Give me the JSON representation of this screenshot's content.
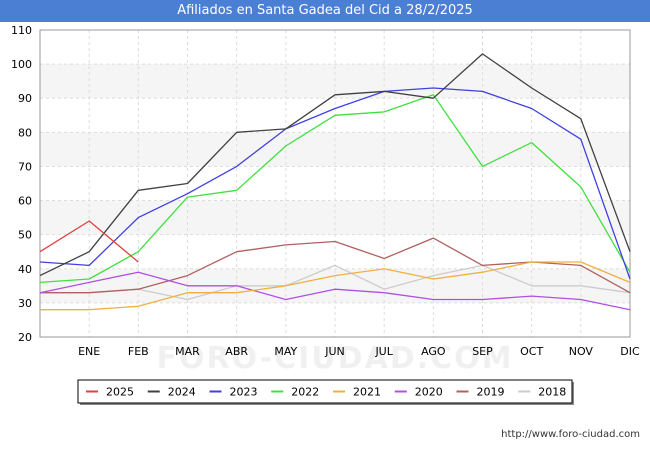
{
  "header": {
    "title": "Afiliados en Santa Gadea del Cid a 28/2/2025"
  },
  "footer": {
    "url": "http://www.foro-ciudad.com"
  },
  "watermark": "FORO-CIUDAD.COM",
  "chart_data": {
    "type": "line",
    "title": "Afiliados en Santa Gadea del Cid a 28/2/2025",
    "xlabel": "",
    "ylabel": "",
    "x": [
      "",
      "ENE",
      "FEB",
      "MAR",
      "ABR",
      "MAY",
      "JUN",
      "JUL",
      "AGO",
      "SEP",
      "OCT",
      "NOV",
      "DIC"
    ],
    "ylim": [
      20,
      110
    ],
    "yticks": [
      20,
      30,
      40,
      50,
      60,
      70,
      80,
      90,
      100,
      110
    ],
    "grid": true,
    "legend_position": "bottom",
    "series": [
      {
        "name": "2025",
        "color": "#e04040",
        "values": [
          45,
          54,
          42,
          null,
          null,
          null,
          null,
          null,
          null,
          null,
          null,
          null,
          null
        ]
      },
      {
        "name": "2024",
        "color": "#404040",
        "values": [
          38,
          45,
          63,
          65,
          80,
          81,
          91,
          92,
          90,
          103,
          93,
          84,
          45
        ]
      },
      {
        "name": "2023",
        "color": "#4040e0",
        "values": [
          42,
          41,
          55,
          62,
          70,
          81,
          87,
          92,
          93,
          92,
          87,
          78,
          37
        ]
      },
      {
        "name": "2022",
        "color": "#40e040",
        "values": [
          36,
          37,
          45,
          61,
          63,
          76,
          85,
          86,
          91,
          70,
          77,
          64,
          39
        ]
      },
      {
        "name": "2021",
        "color": "#f0b040",
        "values": [
          28,
          28,
          29,
          33,
          33,
          35,
          38,
          40,
          37,
          39,
          42,
          42,
          36
        ]
      },
      {
        "name": "2020",
        "color": "#b050e0",
        "values": [
          33,
          36,
          39,
          35,
          35,
          31,
          34,
          33,
          31,
          31,
          32,
          31,
          28
        ]
      },
      {
        "name": "2019",
        "color": "#b06060",
        "values": [
          33,
          33,
          34,
          38,
          45,
          47,
          48,
          43,
          49,
          41,
          42,
          41,
          33
        ]
      },
      {
        "name": "2018",
        "color": "#cccccc",
        "values": [
          33,
          33,
          34,
          31,
          35,
          35,
          41,
          34,
          38,
          41,
          35,
          35,
          33
        ]
      }
    ]
  }
}
